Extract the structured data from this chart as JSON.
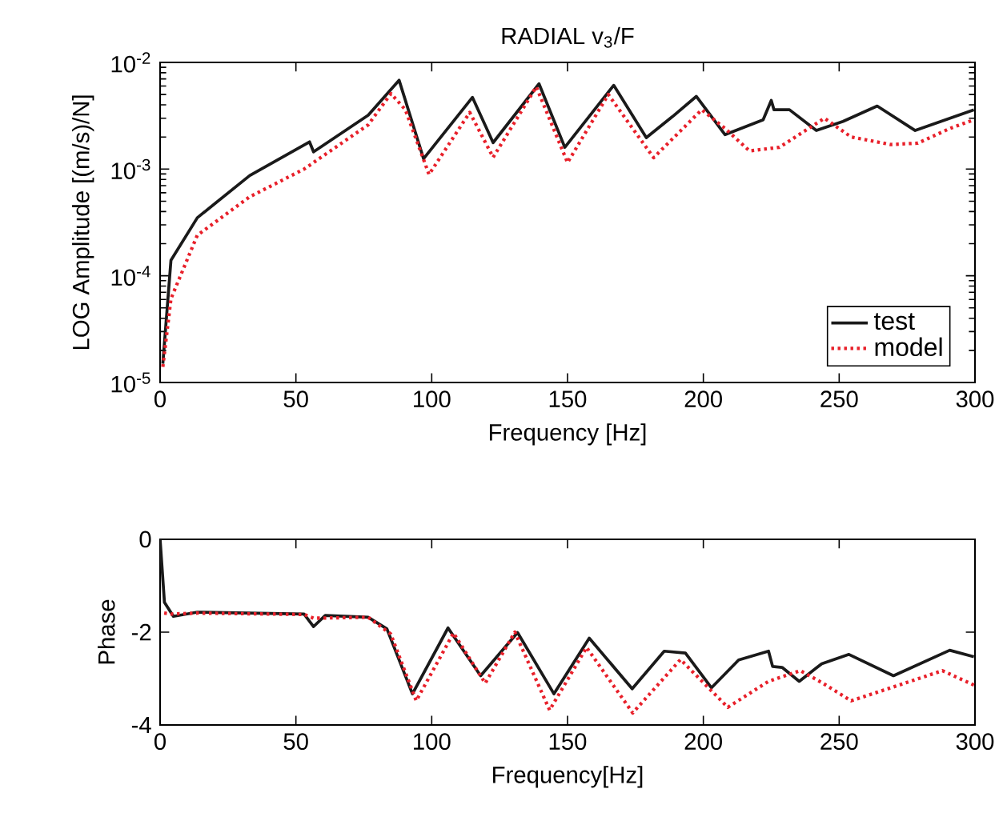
{
  "chart_data": [
    {
      "type": "line",
      "title": "RADIAL v$_{3}$/F",
      "xlabel": "Frequency [Hz]",
      "ylabel": "LOG Amplitude [(m/s)/N]",
      "log": "y",
      "xlim": [
        0,
        300
      ],
      "xticks": [
        0,
        50,
        100,
        150,
        200,
        250,
        300
      ],
      "ylim": [
        1e-05,
        0.01
      ],
      "yticks": [
        {
          "value": 1e-05,
          "label": "10$^{-5}$"
        },
        {
          "value": 0.0001,
          "label": "10$^{-4}$"
        },
        {
          "value": 0.001,
          "label": "10$^{-3}$"
        },
        {
          "value": 0.01,
          "label": "10$^{-2}$"
        }
      ],
      "legend": "bottom right",
      "marker": "none",
      "grid": false,
      "series": [
        {
          "name": "test",
          "color": "#1a1a1a",
          "line_style": "solid",
          "x": [
            1,
            4,
            13.7,
            33,
            55,
            56.5,
            76.6,
            88,
            97,
            115,
            122.6,
            139.5,
            149,
            167,
            179,
            188.6,
            197.4,
            208,
            222,
            225,
            226,
            231.7,
            241.6,
            251.4,
            264,
            278,
            299.6
          ],
          "values": [
            1.5e-05,
            0.00014,
            0.00035,
            0.00087,
            0.0018,
            0.00145,
            0.0032,
            0.0068,
            0.00125,
            0.0047,
            0.00177,
            0.0063,
            0.0016,
            0.0061,
            0.00197,
            0.0031,
            0.0048,
            0.0021,
            0.0029,
            0.0044,
            0.0036,
            0.0036,
            0.0023,
            0.0028,
            0.0039,
            0.0023,
            0.0036
          ]
        },
        {
          "name": "model",
          "color": "#e8202a",
          "line_style": "dotted",
          "x": [
            1,
            4,
            13.7,
            33,
            53,
            76.6,
            85,
            90.3,
            99,
            114,
            122.6,
            138.5,
            150,
            165,
            181.7,
            199.4,
            208,
            217,
            228,
            244.6,
            254.4,
            269,
            279,
            290.7,
            299.6
          ],
          "values": [
            1.4e-05,
            6.1e-05,
            0.00024,
            0.00055,
            0.001,
            0.0026,
            0.0051,
            0.0036,
            0.00089,
            0.0034,
            0.00129,
            0.0059,
            0.00115,
            0.005,
            0.00128,
            0.0036,
            0.0024,
            0.00148,
            0.0016,
            0.003,
            0.002,
            0.0017,
            0.00175,
            0.0024,
            0.0029
          ]
        }
      ]
    },
    {
      "type": "line",
      "xlabel": "Frequency[Hz]",
      "ylabel": "Phase",
      "xlim": [
        0,
        300
      ],
      "xticks": [
        0,
        50,
        100,
        150,
        200,
        250,
        300
      ],
      "ylim": [
        -4,
        0
      ],
      "yticks": [
        -4,
        -2,
        0
      ],
      "marker": "none",
      "grid": false,
      "series": [
        {
          "color": "#1a1a1a",
          "line_style": "solid",
          "x": [
            0,
            1.6,
            4.9,
            13.7,
            53,
            56.5,
            60.8,
            76.6,
            83.5,
            92.9,
            106,
            118,
            131.6,
            145,
            158,
            173.8,
            185.6,
            193.4,
            203,
            213,
            224,
            225.5,
            229,
            235.3,
            243.6,
            253.6,
            270,
            290.7,
            299.6
          ],
          "values": [
            0,
            -1.36,
            -1.66,
            -1.57,
            -1.61,
            -1.88,
            -1.64,
            -1.68,
            -1.93,
            -3.33,
            -1.91,
            -2.94,
            -2.01,
            -3.33,
            -2.13,
            -3.22,
            -2.41,
            -2.45,
            -3.2,
            -2.6,
            -2.41,
            -2.74,
            -2.76,
            -3.06,
            -2.68,
            -2.48,
            -2.94,
            -2.39,
            -2.53
          ]
        },
        {
          "color": "#e8202a",
          "line_style": "dotted",
          "x": [
            1.5,
            4,
            13.7,
            53,
            56.5,
            76.6,
            84.9,
            94.3,
            108,
            119.7,
            130.6,
            143.4,
            157,
            174,
            191.6,
            209,
            224,
            235.7,
            244,
            254.4,
            269,
            288,
            299.6
          ],
          "values": [
            -1.59,
            -1.61,
            -1.59,
            -1.62,
            -1.7,
            -1.68,
            -2.04,
            -3.48,
            -2.02,
            -3.1,
            -2.0,
            -3.68,
            -2.33,
            -3.74,
            -2.59,
            -3.62,
            -3.06,
            -2.83,
            -3.1,
            -3.48,
            -3.2,
            -2.83,
            -3.14
          ]
        }
      ]
    }
  ]
}
